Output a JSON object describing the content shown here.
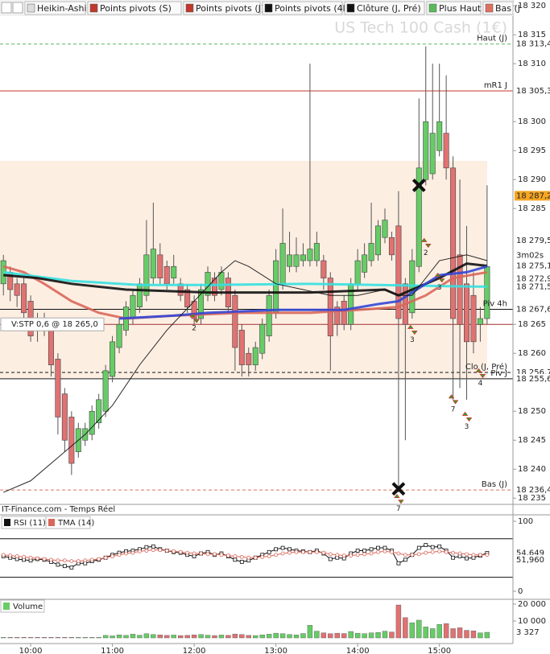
{
  "toolbar": {
    "tabs": [
      "Heikin-Ashi",
      "Points pivots (S)",
      "Points pivots (J)",
      "Points pivots (4h)",
      "Clôture (J, Pré)",
      "Plus Haut (J)",
      "Bas (J"
    ]
  },
  "source": "IT-Finance.com - Temps Réel",
  "chart_data": [
    {
      "type": "candlestick",
      "title": "US Tech 100 Cash (1€)",
      "countdown": "3m02s",
      "categories": [
        null,
        null,
        null,
        null,
        "10:00",
        null,
        null,
        null,
        null,
        null,
        null,
        null,
        null,
        null,
        null,
        null,
        "11:00",
        null,
        null,
        null,
        null,
        null,
        null,
        null,
        null,
        null,
        null,
        null,
        "12:00",
        null,
        null,
        null,
        null,
        null,
        null,
        null,
        null,
        null,
        null,
        null,
        "13:00",
        null,
        null,
        null,
        null,
        null,
        null,
        null,
        null,
        null,
        null,
        null,
        "14:00",
        null,
        null,
        null,
        null,
        null,
        null,
        null,
        null,
        null,
        null,
        null,
        "15:00",
        null,
        null,
        null,
        null,
        null,
        null,
        null
      ],
      "open": [
        18272,
        18274,
        18272,
        18272,
        18269,
        18266,
        18266,
        18265,
        18259,
        18253,
        18249,
        18243,
        18245,
        18246,
        18248,
        18250,
        18256,
        18261,
        18264,
        18266,
        18268,
        18270,
        18273,
        18277,
        18275,
        18273,
        18272,
        18271,
        18269,
        18266,
        18270,
        18273,
        18271,
        18273,
        18270,
        18264,
        18260,
        18258,
        18260,
        18263,
        18267,
        18272,
        18275,
        18275,
        18276,
        18276,
        18276,
        18276,
        18273,
        18268,
        18269,
        18265,
        18272,
        18274,
        18276,
        18277,
        18280,
        18280,
        18282,
        18272,
        18267,
        18275,
        18290,
        18291,
        18295,
        18298,
        18292,
        18277,
        18272,
        18270,
        18265,
        18266
      ],
      "high": [
        18277,
        18275,
        18273,
        18273,
        18270,
        18267,
        18267,
        18266,
        18260,
        18254,
        18250,
        18248,
        18248,
        18251,
        18253,
        18258,
        18263,
        18266,
        18269,
        18271,
        18273,
        18283,
        18286,
        18279,
        18276,
        18277,
        18273,
        18272,
        18270,
        18272,
        18275,
        18274,
        18275,
        18274,
        18271,
        18265,
        18261,
        18262,
        18266,
        18271,
        18278,
        18285,
        18281,
        18280,
        18279,
        18310,
        18281,
        18277,
        18274,
        18269,
        18270,
        18273,
        18278,
        18279,
        18286,
        18283,
        18285,
        18281,
        18288,
        18273,
        18278,
        18304,
        18313,
        18310,
        18310,
        18308,
        18294,
        18290,
        18282,
        18274,
        18268,
        18289
      ],
      "low": [
        18270,
        18269,
        18268,
        18265,
        18262,
        18262,
        18263,
        18256,
        18246,
        18243,
        18239,
        18242,
        18244,
        18245,
        18247,
        18249,
        18255,
        18260,
        18263,
        18265,
        18267,
        18269,
        18272,
        18272,
        18271,
        18272,
        18269,
        18267,
        18265,
        18265,
        18269,
        18269,
        18270,
        18267,
        18257,
        18256,
        18256,
        18257,
        18259,
        18262,
        18266,
        18271,
        18274,
        18274,
        18275,
        18275,
        18275,
        18271,
        18257,
        18263,
        18264,
        18264,
        18271,
        18273,
        18275,
        18276,
        18279,
        18276,
        18236,
        18245,
        18266,
        18274,
        18289,
        18290,
        18294,
        18290,
        18252,
        18254,
        18252,
        18260,
        18262,
        18265
      ],
      "close": [
        18276,
        18271,
        18270,
        18267,
        18263,
        18264,
        18264,
        18258,
        18249,
        18245,
        18241,
        18247,
        18247,
        18250,
        18252,
        18257,
        18262,
        18265,
        18268,
        18270,
        18272,
        18277,
        18278,
        18273,
        18272,
        18275,
        18270,
        18268,
        18266,
        18271,
        18274,
        18270,
        18274,
        18268,
        18261,
        18258,
        18258,
        18261,
        18265,
        18270,
        18276,
        18279,
        18277,
        18277,
        18277,
        18278,
        18279,
        18273,
        18263,
        18265,
        18265,
        18272,
        18276,
        18277,
        18279,
        18282,
        18283,
        18277,
        18266,
        18265,
        18276,
        18292,
        18300,
        18298,
        18300,
        18292,
        18266,
        18265,
        18262,
        18262,
        18266,
        18275
      ],
      "up_color": "#66cc66",
      "down_color": "#e07272",
      "lines": [
        {
          "color": "#d9675a",
          "thick": true,
          "x": [
            0,
            3,
            6,
            10,
            14,
            18,
            25,
            35,
            45,
            52,
            58,
            62,
            66,
            71
          ],
          "values": [
            18275,
            18274,
            18272,
            18269,
            18267,
            18266,
            18266.5,
            18267,
            18267,
            18267.5,
            18268,
            18270,
            18273,
            18274
          ]
        },
        {
          "color": "#35e0e0",
          "thick": true,
          "x": [
            0,
            10,
            20,
            30,
            45,
            55,
            65,
            71
          ],
          "values": [
            18274,
            18272.5,
            18271.8,
            18271.8,
            18272,
            18271.8,
            18271.6,
            18271.5
          ]
        },
        {
          "color": "#111111",
          "thick": true,
          "x": [
            0,
            5,
            10,
            18,
            30,
            45,
            56,
            58,
            64,
            68,
            71
          ],
          "values": [
            18273.5,
            18273,
            18272,
            18271,
            18270.5,
            18270.5,
            18271,
            18270,
            18273,
            18275.5,
            18275.1
          ]
        },
        {
          "color": "#3347d6",
          "thick": true,
          "x": [
            17,
            25,
            30,
            40,
            50,
            55,
            58,
            62,
            64,
            68,
            71
          ],
          "values": [
            18266,
            18266.5,
            18267,
            18267.5,
            18267.5,
            18268.5,
            18269,
            18272,
            18273.5,
            18274,
            18275
          ]
        },
        {
          "color": "#111111",
          "thick": false,
          "x": [
            0,
            4,
            8,
            12,
            16,
            20,
            24,
            28,
            32,
            34,
            36,
            40,
            44,
            48,
            52,
            56,
            58,
            60,
            62,
            64,
            68,
            71
          ],
          "values": [
            18236,
            18238,
            18242,
            18246,
            18251,
            18258,
            18264,
            18269,
            18274,
            18276,
            18275,
            18272,
            18271,
            18270,
            18270,
            18271,
            18270,
            18270,
            18273,
            18276,
            18277,
            18276
          ]
        }
      ],
      "levels": [
        {
          "value": 18313.4,
          "label": "Haut (J)",
          "tag": "18 313,4",
          "color": "#5cb85c",
          "dashed": true
        },
        {
          "value": 18305.3,
          "label": "mR1 J",
          "tag": "18 305,3",
          "color": "#c0392b",
          "dashed": false
        },
        {
          "value": 18267.6,
          "label": "Piv 4h",
          "tag": "18 267,6",
          "color": "#111111",
          "dashed": false
        },
        {
          "value": 18256.7,
          "label": "Clo (J, Pré)",
          "tag": "18 256,7",
          "color": "#111111",
          "dashed": true
        },
        {
          "value": 18255.6,
          "label": "Piv J",
          "tag": "18 255,6",
          "color": "#111111",
          "dashed": false
        },
        {
          "value": 18236.4,
          "label": "Bas (J)",
          "tag": "18 236,4",
          "color": "#e07060",
          "dashed": true
        }
      ],
      "stop": {
        "value": 18265,
        "label": "V:STP 0,6 @ 18 265,0",
        "color": "#a33030"
      },
      "tags": [
        {
          "value": 18287.2,
          "label": "18 287,2",
          "color": "#222222",
          "bg": "#f5a623"
        },
        {
          "value": 18279.5,
          "label": "18 279,5",
          "color": "#222222",
          "bg": "#ffffff"
        },
        {
          "value": 18275.1,
          "label": "18 275,1",
          "color": "#222222",
          "bg": "#ffffff"
        },
        {
          "value": 18272.9,
          "label": "18 272,9",
          "color": "#d2782a",
          "bg": "#ffffff"
        },
        {
          "value": 18271.5,
          "label": "18 271,5",
          "color": "#20b8c8",
          "bg": "#ffffff"
        }
      ],
      "markers": [
        {
          "candle": 58,
          "price": 18236.6
        },
        {
          "candle": 61,
          "price": 18289
        }
      ],
      "signals": [
        {
          "candle": 28,
          "price": 18266,
          "label": "2"
        },
        {
          "candle": 58,
          "price": 18234.8,
          "label": "7"
        },
        {
          "candle": 60,
          "price": 18264,
          "label": "3"
        },
        {
          "candle": 62,
          "price": 18279,
          "label": "2"
        },
        {
          "candle": 64,
          "price": 18273,
          "label": "3"
        },
        {
          "candle": 66,
          "price": 18252,
          "label": "7"
        },
        {
          "candle": 68,
          "price": 18249,
          "label": "3"
        },
        {
          "candle": 70,
          "price": 18256.5,
          "label": "4"
        }
      ],
      "ylim": [
        18234.2,
        18321
      ],
      "yticks": [
        {
          "value": 18320,
          "label": "18 320"
        },
        {
          "value": 18315,
          "label": "18 315"
        },
        {
          "value": 18310,
          "label": "18 310"
        },
        {
          "value": 18300,
          "label": "18 300"
        },
        {
          "value": 18295,
          "label": "18 295"
        },
        {
          "value": 18290,
          "label": "18 290"
        },
        {
          "value": 18285,
          "label": "18 285"
        },
        {
          "value": 18265,
          "label": "18 265"
        },
        {
          "value": 18260,
          "label": "18 260"
        },
        {
          "value": 18250,
          "label": "18 250"
        },
        {
          "value": 18245,
          "label": "18 245"
        },
        {
          "value": 18240,
          "label": "18 240"
        },
        {
          "value": 18235,
          "label": "18 235"
        }
      ]
    },
    {
      "type": "line",
      "series": [
        {
          "name": "RSI (11)",
          "color": "#111111",
          "marker": "square",
          "tag": "54,649",
          "values": [
            50,
            48,
            46,
            45,
            44,
            46,
            45,
            42,
            38,
            36,
            34,
            40,
            40,
            43,
            45,
            48,
            52,
            55,
            57,
            58,
            60,
            63,
            64,
            60,
            58,
            56,
            55,
            52,
            50,
            54,
            56,
            52,
            54,
            50,
            45,
            42,
            44,
            48,
            52,
            56,
            60,
            62,
            60,
            58,
            57,
            56,
            58,
            54,
            46,
            48,
            47,
            54,
            58,
            58,
            60,
            62,
            62,
            58,
            40,
            45,
            52,
            62,
            66,
            63,
            64,
            58,
            48,
            50,
            47,
            48,
            51,
            54.649
          ]
        },
        {
          "name": "TMA (14)",
          "color": "#d9675a",
          "marker": "circle",
          "tag": "51,960",
          "values": [
            52,
            51,
            50,
            49,
            48,
            47,
            46,
            45,
            44,
            44,
            43,
            43,
            44,
            45,
            46,
            48,
            50,
            52,
            54,
            55,
            57,
            58,
            59,
            59,
            58,
            57,
            56,
            55,
            54,
            54,
            53,
            53,
            52,
            51,
            50,
            49,
            48,
            48,
            49,
            50,
            52,
            54,
            55,
            56,
            56,
            56,
            56,
            55,
            53,
            52,
            51,
            51,
            52,
            53,
            54,
            56,
            57,
            56,
            54,
            52,
            52,
            53,
            55,
            56,
            57,
            56,
            55,
            54,
            53,
            52,
            52,
            51.96
          ]
        }
      ],
      "guides": [
        75,
        20
      ],
      "ylim": [
        -11.5,
        109.2
      ],
      "yticks": [
        0,
        100
      ]
    },
    {
      "type": "bar",
      "series": [
        {
          "name": "Volume",
          "color": "#66cc66",
          "tag": "3 327",
          "values": [
            300,
            300,
            300,
            300,
            300,
            300,
            300,
            300,
            300,
            300,
            300,
            300,
            300,
            300,
            300,
            1500,
            1200,
            1800,
            1500,
            2200,
            1600,
            2500,
            2000,
            1800,
            1500,
            1700,
            1400,
            1500,
            1800,
            2000,
            1600,
            1400,
            1700,
            1500,
            2300,
            2000,
            1500,
            1400,
            1800,
            2200,
            2800,
            2500,
            2000,
            1800,
            2600,
            7500,
            4000,
            3000,
            2500,
            2800,
            2600,
            3800,
            2800,
            2500,
            3000,
            3200,
            4000,
            3500,
            19500,
            12000,
            9000,
            10500,
            6500,
            5500,
            8000,
            8500,
            5500,
            6000,
            4500,
            4200,
            3000,
            3327
          ]
        }
      ],
      "ylim": [
        -3333,
        22857
      ],
      "yticks": [
        {
          "value": 10000,
          "label": "10 000"
        },
        {
          "value": 20000,
          "label": "20 000"
        }
      ]
    }
  ]
}
